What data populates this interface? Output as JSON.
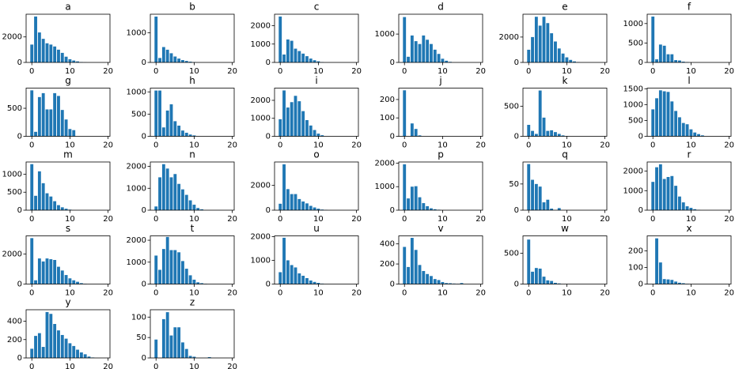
{
  "chart_data": [
    {
      "type": "bar",
      "title": "a",
      "color": "#1f77b4",
      "x": [
        0,
        1,
        2,
        3,
        4,
        5,
        6,
        7,
        8,
        9,
        10,
        11,
        12,
        13,
        14
      ],
      "values": [
        1400,
        3600,
        2350,
        1850,
        1500,
        1400,
        1250,
        1000,
        750,
        450,
        250,
        150,
        80,
        30,
        10
      ],
      "xlim": [
        -1.5,
        20.5
      ],
      "xticks": [
        0,
        10,
        20
      ],
      "ylim": [
        0,
        3780
      ],
      "yticks": [
        0,
        2000
      ]
    },
    {
      "type": "bar",
      "title": "b",
      "color": "#1f77b4",
      "x": [
        0,
        1,
        2,
        3,
        4,
        5,
        6,
        7,
        8,
        9,
        10
      ],
      "values": [
        1550,
        150,
        520,
        430,
        310,
        200,
        130,
        80,
        50,
        25,
        10
      ],
      "xlim": [
        -1.5,
        20.5
      ],
      "xticks": [
        0,
        10,
        20
      ],
      "ylim": [
        0,
        1630
      ],
      "yticks": [
        0,
        1000
      ]
    },
    {
      "type": "bar",
      "title": "c",
      "color": "#1f77b4",
      "x": [
        0,
        1,
        2,
        3,
        4,
        5,
        6,
        7,
        8,
        9,
        10,
        11
      ],
      "values": [
        2500,
        430,
        1250,
        1180,
        750,
        620,
        480,
        340,
        210,
        120,
        60,
        20
      ],
      "xlim": [
        -1.5,
        20.5
      ],
      "xticks": [
        0,
        10,
        20
      ],
      "ylim": [
        0,
        2625
      ],
      "yticks": [
        0,
        1000,
        2000
      ]
    },
    {
      "type": "bar",
      "title": "d",
      "color": "#1f77b4",
      "x": [
        0,
        1,
        2,
        3,
        4,
        5,
        6,
        7,
        8,
        9,
        10,
        11,
        12
      ],
      "values": [
        1600,
        200,
        950,
        750,
        650,
        950,
        800,
        650,
        450,
        300,
        130,
        60,
        20
      ],
      "xlim": [
        -1.5,
        20.5
      ],
      "xticks": [
        0,
        10,
        20
      ],
      "ylim": [
        0,
        1700
      ],
      "yticks": [
        0,
        1000
      ]
    },
    {
      "type": "bar",
      "title": "e",
      "color": "#1f77b4",
      "x": [
        0,
        1,
        2,
        3,
        4,
        5,
        6,
        7,
        8,
        9,
        10,
        11,
        12,
        13
      ],
      "values": [
        1000,
        2000,
        3600,
        2900,
        3600,
        3100,
        2300,
        1650,
        1100,
        700,
        400,
        200,
        80,
        30
      ],
      "xlim": [
        -1.5,
        20.5
      ],
      "xticks": [
        0,
        10,
        20
      ],
      "ylim": [
        0,
        3800
      ],
      "yticks": [
        0,
        2000
      ]
    },
    {
      "type": "bar",
      "title": "f",
      "color": "#1f77b4",
      "x": [
        0,
        1,
        2,
        3,
        4,
        5,
        6,
        7,
        8,
        9
      ],
      "values": [
        1180,
        80,
        460,
        430,
        210,
        210,
        60,
        50,
        20,
        10
      ],
      "xlim": [
        -1.5,
        20.5
      ],
      "xticks": [
        0,
        10,
        20
      ],
      "ylim": [
        0,
        1240
      ],
      "yticks": [
        0,
        500,
        1000
      ]
    },
    {
      "type": "bar",
      "title": "g",
      "color": "#1f77b4",
      "x": [
        0,
        1,
        2,
        3,
        4,
        5,
        6,
        7,
        8,
        9,
        10,
        11
      ],
      "values": [
        820,
        80,
        700,
        770,
        480,
        480,
        770,
        720,
        470,
        300,
        130,
        110
      ],
      "xlim": [
        -1.5,
        20.5
      ],
      "xticks": [
        0,
        10,
        20
      ],
      "ylim": [
        0,
        860
      ],
      "yticks": [
        0,
        500
      ]
    },
    {
      "type": "bar",
      "title": "h",
      "color": "#1f77b4",
      "x": [
        0,
        1,
        2,
        3,
        4,
        5,
        6,
        7,
        8,
        9,
        10
      ],
      "values": [
        1030,
        1030,
        200,
        580,
        720,
        340,
        240,
        130,
        80,
        40,
        20
      ],
      "xlim": [
        -1.5,
        20.5
      ],
      "xticks": [
        0,
        10,
        20
      ],
      "ylim": [
        0,
        1085
      ],
      "yticks": [
        0,
        500,
        1000
      ]
    },
    {
      "type": "bar",
      "title": "i",
      "color": "#1f77b4",
      "x": [
        0,
        1,
        2,
        3,
        4,
        5,
        6,
        7,
        8,
        9,
        10,
        11
      ],
      "values": [
        950,
        2550,
        1600,
        1900,
        2250,
        1950,
        1400,
        900,
        600,
        350,
        150,
        60
      ],
      "xlim": [
        -1.5,
        20.5
      ],
      "xticks": [
        0,
        10,
        20
      ],
      "ylim": [
        0,
        2680
      ],
      "yticks": [
        0,
        1000,
        2000
      ]
    },
    {
      "type": "bar",
      "title": "j",
      "color": "#1f77b4",
      "x": [
        0,
        1,
        2,
        3,
        4
      ],
      "values": [
        250,
        0,
        70,
        40,
        5
      ],
      "xlim": [
        -1.5,
        20.5
      ],
      "xticks": [
        0,
        10,
        20
      ],
      "ylim": [
        0,
        262
      ],
      "yticks": [
        0,
        100,
        200
      ]
    },
    {
      "type": "bar",
      "title": "k",
      "color": "#1f77b4",
      "x": [
        0,
        1,
        2,
        3,
        4,
        5,
        6,
        7,
        8,
        9,
        10
      ],
      "values": [
        190,
        90,
        40,
        760,
        310,
        90,
        100,
        70,
        40,
        15,
        5
      ],
      "xlim": [
        -1.5,
        20.5
      ],
      "xticks": [
        0,
        10,
        20
      ],
      "ylim": [
        0,
        800
      ],
      "yticks": [
        0,
        500
      ]
    },
    {
      "type": "bar",
      "title": "l",
      "color": "#1f77b4",
      "x": [
        0,
        1,
        2,
        3,
        4,
        5,
        6,
        7,
        8,
        9,
        10,
        11,
        12,
        13
      ],
      "values": [
        850,
        1200,
        1450,
        1420,
        1400,
        1100,
        800,
        600,
        420,
        380,
        220,
        120,
        70,
        30
      ],
      "xlim": [
        -1.5,
        20.5
      ],
      "xticks": [
        0,
        10,
        20
      ],
      "ylim": [
        0,
        1520
      ],
      "yticks": [
        0,
        500,
        1000,
        1500
      ]
    },
    {
      "type": "bar",
      "title": "m",
      "color": "#1f77b4",
      "x": [
        0,
        1,
        2,
        3,
        4,
        5,
        6,
        7,
        8,
        9,
        10
      ],
      "values": [
        1280,
        400,
        1080,
        750,
        470,
        380,
        250,
        140,
        80,
        40,
        15
      ],
      "xlim": [
        -1.5,
        20.5
      ],
      "xticks": [
        0,
        10,
        20
      ],
      "ylim": [
        0,
        1340
      ],
      "yticks": [
        0,
        500,
        1000
      ]
    },
    {
      "type": "bar",
      "title": "n",
      "color": "#1f77b4",
      "x": [
        0,
        1,
        2,
        3,
        4,
        5,
        6,
        7,
        8,
        9,
        10,
        11,
        12
      ],
      "values": [
        170,
        1500,
        2100,
        1900,
        1500,
        1650,
        1200,
        950,
        700,
        450,
        250,
        100,
        40
      ],
      "xlim": [
        -1.5,
        20.5
      ],
      "xticks": [
        0,
        10,
        20
      ],
      "ylim": [
        0,
        2200
      ],
      "yticks": [
        0,
        1000,
        2000
      ]
    },
    {
      "type": "bar",
      "title": "o",
      "color": "#1f77b4",
      "x": [
        0,
        1,
        2,
        3,
        4,
        5,
        6,
        7,
        8,
        9,
        10,
        11,
        12
      ],
      "values": [
        520,
        3700,
        1700,
        1300,
        1300,
        900,
        700,
        550,
        350,
        220,
        120,
        50,
        20
      ],
      "xlim": [
        -1.5,
        20.5
      ],
      "xticks": [
        0,
        10,
        20
      ],
      "ylim": [
        0,
        3890
      ],
      "yticks": [
        0,
        2000
      ]
    },
    {
      "type": "bar",
      "title": "p",
      "color": "#1f77b4",
      "x": [
        0,
        1,
        2,
        3,
        4,
        5,
        6,
        7,
        8,
        9
      ],
      "values": [
        1950,
        500,
        1000,
        1020,
        550,
        300,
        170,
        80,
        40,
        20
      ],
      "xlim": [
        -1.5,
        20.5
      ],
      "xticks": [
        0,
        10,
        20
      ],
      "ylim": [
        0,
        2050
      ],
      "yticks": [
        0,
        1000,
        2000
      ]
    },
    {
      "type": "bar",
      "title": "q",
      "color": "#1f77b4",
      "x": [
        0,
        1,
        2,
        3,
        4,
        5,
        6,
        7,
        8
      ],
      "values": [
        88,
        58,
        50,
        45,
        15,
        20,
        3,
        0,
        4
      ],
      "xlim": [
        -1.5,
        20.5
      ],
      "xticks": [
        0,
        10,
        20
      ],
      "ylim": [
        0,
        92
      ],
      "yticks": [
        0,
        50
      ]
    },
    {
      "type": "bar",
      "title": "r",
      "color": "#1f77b4",
      "x": [
        0,
        1,
        2,
        3,
        4,
        5,
        6,
        7,
        8,
        9,
        10,
        11,
        12
      ],
      "values": [
        1450,
        2200,
        2350,
        1600,
        1700,
        1750,
        1250,
        700,
        400,
        200,
        120,
        50,
        20
      ],
      "xlim": [
        -1.5,
        20.5
      ],
      "xticks": [
        0,
        10,
        20
      ],
      "ylim": [
        0,
        2470
      ],
      "yticks": [
        0,
        1000,
        2000
      ]
    },
    {
      "type": "bar",
      "title": "s",
      "color": "#1f77b4",
      "x": [
        0,
        1,
        2,
        3,
        4,
        5,
        6,
        7,
        8,
        9,
        10,
        11,
        12,
        13,
        14
      ],
      "values": [
        3050,
        250,
        1700,
        1500,
        1700,
        1650,
        1600,
        1150,
        900,
        600,
        380,
        250,
        150,
        60,
        20
      ],
      "xlim": [
        -1.5,
        20.5
      ],
      "xticks": [
        0,
        10,
        20
      ],
      "ylim": [
        0,
        3200
      ],
      "yticks": [
        0,
        2000
      ]
    },
    {
      "type": "bar",
      "title": "t",
      "color": "#1f77b4",
      "x": [
        0,
        1,
        2,
        3,
        4,
        5,
        6,
        7,
        8,
        9,
        10,
        11,
        12,
        13
      ],
      "values": [
        1300,
        650,
        1600,
        2150,
        1550,
        1550,
        1450,
        1050,
        700,
        400,
        200,
        80,
        40,
        15
      ],
      "xlim": [
        -1.5,
        20.5
      ],
      "xticks": [
        0,
        10,
        20
      ],
      "ylim": [
        0,
        2200
      ],
      "yticks": [
        0,
        1000,
        2000
      ]
    },
    {
      "type": "bar",
      "title": "u",
      "color": "#1f77b4",
      "x": [
        0,
        1,
        2,
        3,
        4,
        5,
        6,
        7,
        8,
        9,
        10,
        11
      ],
      "values": [
        500,
        1950,
        1000,
        800,
        700,
        450,
        350,
        250,
        150,
        90,
        50,
        20
      ],
      "xlim": [
        -1.5,
        20.5
      ],
      "xticks": [
        0,
        10,
        20
      ],
      "ylim": [
        0,
        2030
      ],
      "yticks": [
        0,
        1000,
        2000
      ]
    },
    {
      "type": "bar",
      "title": "v",
      "color": "#1f77b4",
      "x": [
        0,
        1,
        2,
        3,
        4,
        5,
        6,
        7,
        8,
        9,
        10,
        11,
        12,
        13,
        14,
        15
      ],
      "values": [
        370,
        170,
        460,
        340,
        190,
        130,
        100,
        80,
        50,
        40,
        20,
        10,
        8,
        5,
        3,
        10
      ],
      "xlim": [
        -1.5,
        20.5
      ],
      "xticks": [
        0,
        10,
        20
      ],
      "ylim": [
        0,
        480
      ],
      "yticks": [
        0,
        200,
        400
      ]
    },
    {
      "type": "bar",
      "title": "w",
      "color": "#1f77b4",
      "x": [
        0,
        1,
        2,
        3,
        4,
        5,
        6,
        7,
        8
      ],
      "values": [
        720,
        200,
        260,
        250,
        120,
        60,
        50,
        20,
        10
      ],
      "xlim": [
        -1.5,
        20.5
      ],
      "xticks": [
        0,
        10,
        20
      ],
      "ylim": [
        0,
        780
      ],
      "yticks": [
        0,
        500
      ]
    },
    {
      "type": "bar",
      "title": "x",
      "color": "#1f77b4",
      "x": [
        0,
        1,
        2,
        3,
        4,
        5,
        6,
        7,
        8,
        9
      ],
      "values": [
        0,
        275,
        130,
        30,
        28,
        25,
        15,
        8,
        5,
        2
      ],
      "xlim": [
        -1.5,
        20.5
      ],
      "xticks": [
        0,
        10,
        20
      ],
      "ylim": [
        0,
        290
      ],
      "yticks": [
        0,
        100,
        200
      ]
    },
    {
      "type": "bar",
      "title": "y",
      "color": "#1f77b4",
      "x": [
        0,
        1,
        2,
        3,
        4,
        5,
        6,
        7,
        8,
        9,
        10,
        11,
        12,
        13,
        14,
        15,
        16
      ],
      "values": [
        100,
        240,
        270,
        120,
        500,
        480,
        370,
        300,
        250,
        210,
        160,
        130,
        90,
        60,
        40,
        15,
        5
      ],
      "xlim": [
        -1.5,
        20.5
      ],
      "xticks": [
        0,
        10,
        20
      ],
      "ylim": [
        0,
        525
      ],
      "yticks": [
        0,
        200,
        400
      ]
    },
    {
      "type": "bar",
      "title": "z",
      "color": "#1f77b4",
      "x": [
        0,
        1,
        2,
        3,
        4,
        5,
        6,
        7,
        8,
        9,
        10,
        11,
        12,
        13,
        14
      ],
      "values": [
        45,
        0,
        95,
        112,
        55,
        75,
        75,
        38,
        22,
        5,
        3,
        0,
        0,
        0,
        2
      ],
      "xlim": [
        -1.5,
        20.5
      ],
      "xticks": [
        0,
        10,
        20
      ],
      "ylim": [
        0,
        118
      ],
      "yticks": [
        0,
        50,
        100
      ]
    }
  ]
}
